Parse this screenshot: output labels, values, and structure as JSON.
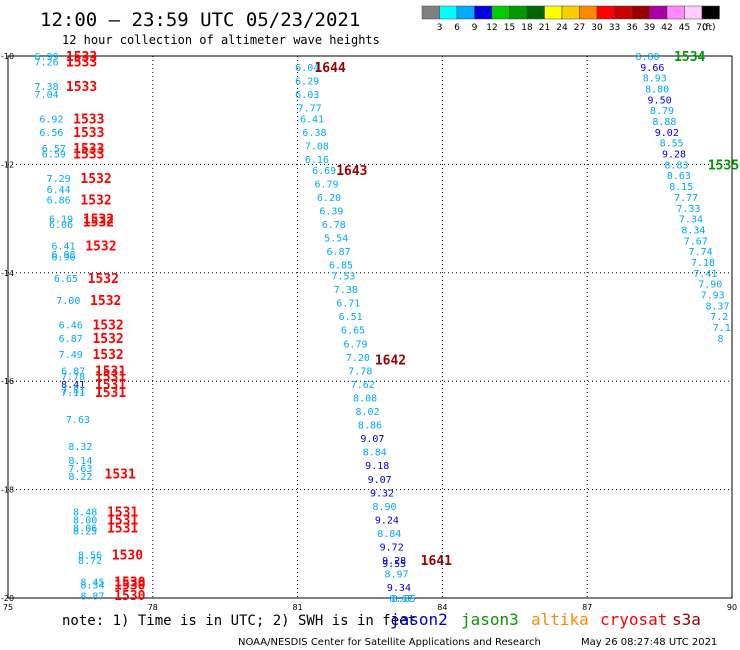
{
  "title": "12:00 – 23:59 UTC 05/23/2021",
  "subtitle": "12 hour collection of altimeter wave heights",
  "color_scale": {
    "labels": [
      "3",
      "6",
      "9",
      "12",
      "15",
      "18",
      "21",
      "24",
      "27",
      "30",
      "33",
      "36",
      "39",
      "42",
      "45",
      "70"
    ],
    "unit": "(ft)",
    "colors": [
      "#808080",
      "#00ffff",
      "#00aaff",
      "#0000e0",
      "#00cc00",
      "#009900",
      "#006600",
      "#ffff00",
      "#ffcc00",
      "#ff8800",
      "#ff0000",
      "#cc0000",
      "#990000",
      "#aa00aa",
      "#ff88ff",
      "#ffccff",
      "#000000"
    ]
  },
  "footer": {
    "note": "note: 1) Time is in UTC; 2) SWH is in feet",
    "satellites": [
      {
        "name": "jason2",
        "color": "#0000cc"
      },
      {
        "name": "jason3",
        "color": "#009900"
      },
      {
        "name": "altika",
        "color": "#ff8800"
      },
      {
        "name": "cryosat",
        "color": "#ff0000"
      },
      {
        "name": "s3a",
        "color": "#990000"
      }
    ],
    "credit": "NOAA/NESDIS Center for Satellite Applications and Research",
    "timestamp": "May 26 08:27:48 UTC 2021"
  },
  "chart_data": {
    "type": "scatter",
    "xlim": [
      75,
      90
    ],
    "ylim": [
      -20,
      -10
    ],
    "x_ticks": [
      75,
      78,
      81,
      84,
      87,
      90
    ],
    "y_ticks": [
      -10,
      -12,
      -14,
      -16,
      -18,
      -20
    ],
    "grid": true,
    "pass_labels": [
      {
        "text": "1533",
        "x": 76.2,
        "y": -10.0,
        "color": "#ff0000"
      },
      {
        "text": "1533",
        "x": 76.2,
        "y": -10.1,
        "color": "#ff0000"
      },
      {
        "text": "1533",
        "x": 76.2,
        "y": -10.55,
        "color": "#ff0000"
      },
      {
        "text": "1533",
        "x": 76.35,
        "y": -11.15,
        "color": "#ff0000"
      },
      {
        "text": "1533",
        "x": 76.35,
        "y": -11.4,
        "color": "#ff0000"
      },
      {
        "text": "1533",
        "x": 76.35,
        "y": -11.7,
        "color": "#ff0000"
      },
      {
        "text": "1533",
        "x": 76.35,
        "y": -11.8,
        "color": "#ff0000"
      },
      {
        "text": "1532",
        "x": 76.5,
        "y": -12.25,
        "color": "#ff0000"
      },
      {
        "text": "1532",
        "x": 76.5,
        "y": -12.65,
        "color": "#ff0000"
      },
      {
        "text": "1532",
        "x": 76.55,
        "y": -13.0,
        "color": "#ff0000"
      },
      {
        "text": "1532",
        "x": 76.55,
        "y": -13.05,
        "color": "#ff0000"
      },
      {
        "text": "1532",
        "x": 76.6,
        "y": -13.5,
        "color": "#ff0000"
      },
      {
        "text": "1532",
        "x": 76.65,
        "y": -14.1,
        "color": "#ff0000"
      },
      {
        "text": "1532",
        "x": 76.7,
        "y": -14.5,
        "color": "#ff0000"
      },
      {
        "text": "1532",
        "x": 76.75,
        "y": -14.95,
        "color": "#ff0000"
      },
      {
        "text": "1532",
        "x": 76.75,
        "y": -15.2,
        "color": "#ff0000"
      },
      {
        "text": "1532",
        "x": 76.75,
        "y": -15.5,
        "color": "#ff0000"
      },
      {
        "text": "1531",
        "x": 76.8,
        "y": -15.8,
        "color": "#ff0000"
      },
      {
        "text": "1531",
        "x": 76.8,
        "y": -15.9,
        "color": "#ff0000"
      },
      {
        "text": "1531",
        "x": 76.8,
        "y": -16.05,
        "color": "#ff0000"
      },
      {
        "text": "1531",
        "x": 76.8,
        "y": -16.2,
        "color": "#ff0000"
      },
      {
        "text": "1531",
        "x": 77.0,
        "y": -17.7,
        "color": "#ff0000"
      },
      {
        "text": "1531",
        "x": 77.05,
        "y": -18.4,
        "color": "#ff0000"
      },
      {
        "text": "1531",
        "x": 77.05,
        "y": -18.55,
        "color": "#ff0000"
      },
      {
        "text": "1531",
        "x": 77.05,
        "y": -18.7,
        "color": "#ff0000"
      },
      {
        "text": "1530",
        "x": 77.15,
        "y": -19.2,
        "color": "#ff0000"
      },
      {
        "text": "1530",
        "x": 77.2,
        "y": -19.7,
        "color": "#ff0000"
      },
      {
        "text": "1530",
        "x": 77.2,
        "y": -19.75,
        "color": "#ff0000"
      },
      {
        "text": "1530",
        "x": 77.2,
        "y": -19.95,
        "color": "#ff0000"
      },
      {
        "text": "1644",
        "x": 81.35,
        "y": -10.2,
        "color": "#990000"
      },
      {
        "text": "1643",
        "x": 81.8,
        "y": -12.1,
        "color": "#990000"
      },
      {
        "text": "1642",
        "x": 82.6,
        "y": -15.6,
        "color": "#990000"
      },
      {
        "text": "1641",
        "x": 83.55,
        "y": -19.3,
        "color": "#990000"
      },
      {
        "text": "1534",
        "x": 88.8,
        "y": -10.0,
        "color": "#009900"
      },
      {
        "text": "1535",
        "x": 89.5,
        "y": -12.0,
        "color": "#009900"
      }
    ],
    "series": [
      {
        "name": "cryosat",
        "points": [
          {
            "x": 75.55,
            "y": -10.0,
            "v": "6.99",
            "c": "#00aaff"
          },
          {
            "x": 75.55,
            "y": -10.1,
            "v": "7.26",
            "c": "#00aaff"
          },
          {
            "x": 75.55,
            "y": -10.55,
            "v": "7.38",
            "c": "#00aaff"
          },
          {
            "x": 75.55,
            "y": -10.7,
            "v": "7.04",
            "c": "#00aaff"
          },
          {
            "x": 75.65,
            "y": -11.15,
            "v": "6.92",
            "c": "#00aaff"
          },
          {
            "x": 75.65,
            "y": -11.4,
            "v": "6.56",
            "c": "#00aaff"
          },
          {
            "x": 75.7,
            "y": -11.7,
            "v": "6.57",
            "c": "#00aaff"
          },
          {
            "x": 75.7,
            "y": -11.8,
            "v": "6.59",
            "c": "#00aaff"
          },
          {
            "x": 75.8,
            "y": -12.25,
            "v": "7.29",
            "c": "#00aaff"
          },
          {
            "x": 75.8,
            "y": -12.45,
            "v": "6.44",
            "c": "#00aaff"
          },
          {
            "x": 75.8,
            "y": -12.65,
            "v": "6.86",
            "c": "#00aaff"
          },
          {
            "x": 75.85,
            "y": -13.0,
            "v": "6.19",
            "c": "#00aaff"
          },
          {
            "x": 75.85,
            "y": -13.1,
            "v": "6.06",
            "c": "#00aaff"
          },
          {
            "x": 75.9,
            "y": -13.5,
            "v": "6.41",
            "c": "#00aaff"
          },
          {
            "x": 75.9,
            "y": -13.65,
            "v": "6.98",
            "c": "#00aaff"
          },
          {
            "x": 75.9,
            "y": -13.7,
            "v": "6.90",
            "c": "#00aaff"
          },
          {
            "x": 75.95,
            "y": -14.1,
            "v": "6.65",
            "c": "#00aaff"
          },
          {
            "x": 76.0,
            "y": -14.5,
            "v": "7.00",
            "c": "#00aaff"
          },
          {
            "x": 76.05,
            "y": -14.95,
            "v": "6.46",
            "c": "#00aaff"
          },
          {
            "x": 76.05,
            "y": -15.2,
            "v": "6.87",
            "c": "#00aaff"
          },
          {
            "x": 76.05,
            "y": -15.5,
            "v": "7.49",
            "c": "#00aaff"
          },
          {
            "x": 76.1,
            "y": -15.8,
            "v": "6.87",
            "c": "#00aaff"
          },
          {
            "x": 76.1,
            "y": -15.9,
            "v": "7.78",
            "c": "#00aaff"
          },
          {
            "x": 76.1,
            "y": -16.05,
            "v": "8.41",
            "c": "#0000e0"
          },
          {
            "x": 76.1,
            "y": -16.15,
            "v": "7.81",
            "c": "#00aaff"
          },
          {
            "x": 76.1,
            "y": -16.2,
            "v": "7.11",
            "c": "#00aaff"
          },
          {
            "x": 76.2,
            "y": -16.7,
            "v": "7.63",
            "c": "#00aaff"
          },
          {
            "x": 76.25,
            "y": -17.2,
            "v": "8.32",
            "c": "#00aaff"
          },
          {
            "x": 76.25,
            "y": -17.45,
            "v": "8.14",
            "c": "#00aaff"
          },
          {
            "x": 76.25,
            "y": -17.6,
            "v": "7.63",
            "c": "#00aaff"
          },
          {
            "x": 76.25,
            "y": -17.75,
            "v": "8.22",
            "c": "#00aaff"
          },
          {
            "x": 76.35,
            "y": -18.4,
            "v": "8.48",
            "c": "#00aaff"
          },
          {
            "x": 76.35,
            "y": -18.55,
            "v": "8.00",
            "c": "#00aaff"
          },
          {
            "x": 76.35,
            "y": -18.7,
            "v": "8.06",
            "c": "#00aaff"
          },
          {
            "x": 76.35,
            "y": -18.75,
            "v": "8.25",
            "c": "#00aaff"
          },
          {
            "x": 76.45,
            "y": -19.2,
            "v": "8.56",
            "c": "#00aaff"
          },
          {
            "x": 76.45,
            "y": -19.3,
            "v": "8.72",
            "c": "#00aaff"
          },
          {
            "x": 76.5,
            "y": -19.7,
            "v": "8.45",
            "c": "#00aaff"
          },
          {
            "x": 76.5,
            "y": -19.75,
            "v": "8.34",
            "c": "#00aaff"
          },
          {
            "x": 76.5,
            "y": -19.95,
            "v": "8.87",
            "c": "#00aaff"
          }
        ]
      },
      {
        "name": "s3a",
        "points": [
          {
            "x": 80.95,
            "y": -10.2,
            "v": "6.04",
            "c": "#00aaff"
          },
          {
            "x": 80.95,
            "y": -10.45,
            "v": "6.29",
            "c": "#00aaff"
          },
          {
            "x": 80.95,
            "y": -10.7,
            "v": "6.03",
            "c": "#00aaff"
          },
          {
            "x": 81.0,
            "y": -10.95,
            "v": "7.77",
            "c": "#00aaff"
          },
          {
            "x": 81.05,
            "y": -11.15,
            "v": "6.41",
            "c": "#00aaff"
          },
          {
            "x": 81.1,
            "y": -11.4,
            "v": "6.38",
            "c": "#00aaff"
          },
          {
            "x": 81.15,
            "y": -11.65,
            "v": "7.08",
            "c": "#00aaff"
          },
          {
            "x": 81.15,
            "y": -11.9,
            "v": "6.16",
            "c": "#00aaff"
          },
          {
            "x": 81.3,
            "y": -12.1,
            "v": "6.69",
            "c": "#00aaff"
          },
          {
            "x": 81.35,
            "y": -12.35,
            "v": "6.79",
            "c": "#00aaff"
          },
          {
            "x": 81.4,
            "y": -12.6,
            "v": "6.20",
            "c": "#00aaff"
          },
          {
            "x": 81.45,
            "y": -12.85,
            "v": "6.39",
            "c": "#00aaff"
          },
          {
            "x": 81.5,
            "y": -13.1,
            "v": "6.78",
            "c": "#00aaff"
          },
          {
            "x": 81.55,
            "y": -13.35,
            "v": "5.54",
            "c": "#00aaff"
          },
          {
            "x": 81.6,
            "y": -13.6,
            "v": "6.87",
            "c": "#00aaff"
          },
          {
            "x": 81.65,
            "y": -13.85,
            "v": "6.85",
            "c": "#00aaff"
          },
          {
            "x": 81.7,
            "y": -14.05,
            "v": "7.53",
            "c": "#00aaff"
          },
          {
            "x": 81.75,
            "y": -14.3,
            "v": "7.38",
            "c": "#00aaff"
          },
          {
            "x": 81.8,
            "y": -14.55,
            "v": "6.71",
            "c": "#00aaff"
          },
          {
            "x": 81.85,
            "y": -14.8,
            "v": "6.51",
            "c": "#00aaff"
          },
          {
            "x": 81.9,
            "y": -15.05,
            "v": "6.65",
            "c": "#00aaff"
          },
          {
            "x": 81.95,
            "y": -15.3,
            "v": "6.79",
            "c": "#00aaff"
          },
          {
            "x": 82.0,
            "y": -15.55,
            "v": "7.20",
            "c": "#00aaff"
          },
          {
            "x": 82.05,
            "y": -15.8,
            "v": "7.78",
            "c": "#00aaff"
          },
          {
            "x": 82.1,
            "y": -16.05,
            "v": "7.62",
            "c": "#00aaff"
          },
          {
            "x": 82.15,
            "y": -16.3,
            "v": "8.08",
            "c": "#00aaff"
          },
          {
            "x": 82.2,
            "y": -16.55,
            "v": "8.02",
            "c": "#00aaff"
          },
          {
            "x": 82.25,
            "y": -16.8,
            "v": "8.86",
            "c": "#00aaff"
          },
          {
            "x": 82.3,
            "y": -17.05,
            "v": "9.07",
            "c": "#0000e0"
          },
          {
            "x": 82.35,
            "y": -17.3,
            "v": "8.84",
            "c": "#00aaff"
          },
          {
            "x": 82.4,
            "y": -17.55,
            "v": "9.18",
            "c": "#0000e0"
          },
          {
            "x": 82.45,
            "y": -17.8,
            "v": "9.07",
            "c": "#0000e0"
          },
          {
            "x": 82.5,
            "y": -18.05,
            "v": "9.32",
            "c": "#0000e0"
          },
          {
            "x": 82.55,
            "y": -18.3,
            "v": "8.90",
            "c": "#00aaff"
          },
          {
            "x": 82.6,
            "y": -18.55,
            "v": "9.24",
            "c": "#0000e0"
          },
          {
            "x": 82.65,
            "y": -18.8,
            "v": "8.84",
            "c": "#00aaff"
          },
          {
            "x": 82.7,
            "y": -19.05,
            "v": "9.72",
            "c": "#0000e0"
          },
          {
            "x": 82.75,
            "y": -19.3,
            "v": "9.28",
            "c": "#0000e0"
          },
          {
            "x": 82.75,
            "y": -19.35,
            "v": "9.55",
            "c": "#0000e0"
          },
          {
            "x": 82.8,
            "y": -19.55,
            "v": "8.97",
            "c": "#00aaff"
          },
          {
            "x": 82.85,
            "y": -19.8,
            "v": "9.34",
            "c": "#0000e0"
          },
          {
            "x": 82.9,
            "y": -20.05,
            "v": "8.67",
            "c": "#00aaff"
          },
          {
            "x": 82.95,
            "y": -20.3,
            "v": "8.85",
            "c": "#00aaff"
          }
        ]
      },
      {
        "name": "jason3",
        "points": [
          {
            "x": 88.0,
            "y": -10.0,
            "v": "8.80",
            "c": "#00aaff"
          },
          {
            "x": 88.1,
            "y": -10.2,
            "v": "9.66",
            "c": "#0000e0"
          },
          {
            "x": 88.15,
            "y": -10.4,
            "v": "8.93",
            "c": "#00aaff"
          },
          {
            "x": 88.2,
            "y": -10.6,
            "v": "8.80",
            "c": "#00aaff"
          },
          {
            "x": 88.25,
            "y": -10.8,
            "v": "9.50",
            "c": "#0000e0"
          },
          {
            "x": 88.3,
            "y": -11.0,
            "v": "8.79",
            "c": "#00aaff"
          },
          {
            "x": 88.35,
            "y": -11.2,
            "v": "8.88",
            "c": "#00aaff"
          },
          {
            "x": 88.4,
            "y": -11.4,
            "v": "9.02",
            "c": "#0000e0"
          },
          {
            "x": 88.5,
            "y": -11.6,
            "v": "8.55",
            "c": "#00aaff"
          },
          {
            "x": 88.55,
            "y": -11.8,
            "v": "9.28",
            "c": "#0000e0"
          },
          {
            "x": 88.6,
            "y": -12.0,
            "v": "8.83",
            "c": "#00aaff"
          },
          {
            "x": 88.65,
            "y": -12.2,
            "v": "8.63",
            "c": "#00aaff"
          },
          {
            "x": 88.7,
            "y": -12.4,
            "v": "8.15",
            "c": "#00aaff"
          },
          {
            "x": 88.8,
            "y": -12.6,
            "v": "7.77",
            "c": "#00aaff"
          },
          {
            "x": 88.85,
            "y": -12.8,
            "v": "7.33",
            "c": "#00aaff"
          },
          {
            "x": 88.9,
            "y": -13.0,
            "v": "7.34",
            "c": "#00aaff"
          },
          {
            "x": 88.95,
            "y": -13.2,
            "v": "8.34",
            "c": "#00aaff"
          },
          {
            "x": 89.0,
            "y": -13.4,
            "v": "7.67",
            "c": "#00aaff"
          },
          {
            "x": 89.1,
            "y": -13.6,
            "v": "7.74",
            "c": "#00aaff"
          },
          {
            "x": 89.15,
            "y": -13.8,
            "v": "7.18",
            "c": "#00aaff"
          },
          {
            "x": 89.2,
            "y": -14.0,
            "v": "7.41",
            "c": "#00aaff"
          },
          {
            "x": 89.3,
            "y": -14.2,
            "v": "7.90",
            "c": "#00aaff"
          },
          {
            "x": 89.35,
            "y": -14.4,
            "v": "7.93",
            "c": "#00aaff"
          },
          {
            "x": 89.45,
            "y": -14.6,
            "v": "8.37",
            "c": "#00aaff"
          },
          {
            "x": 89.55,
            "y": -14.8,
            "v": "7.2",
            "c": "#00aaff"
          },
          {
            "x": 89.6,
            "y": -15.0,
            "v": "7.1",
            "c": "#00aaff"
          },
          {
            "x": 89.7,
            "y": -15.2,
            "v": "8",
            "c": "#00aaff"
          }
        ]
      }
    ]
  }
}
